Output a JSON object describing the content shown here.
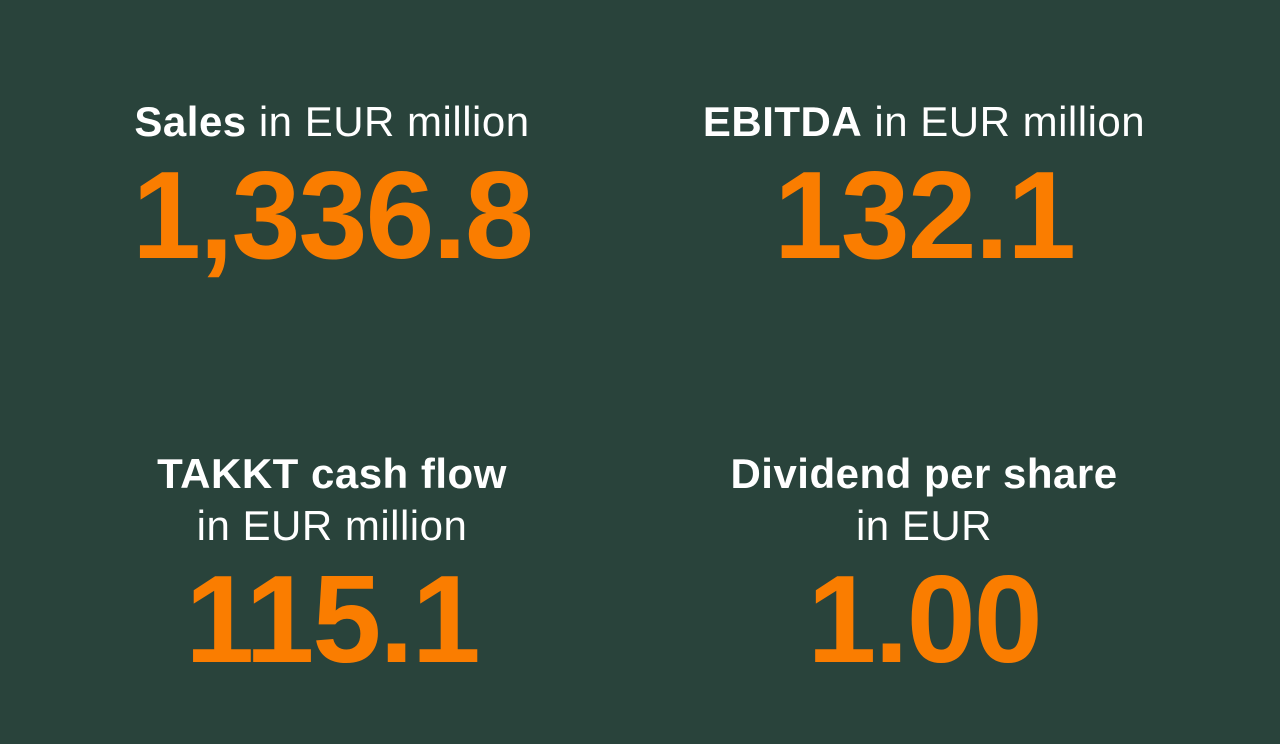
{
  "colors": {
    "background": "#29433b",
    "label": "#ffffff",
    "value": "#fa7d00"
  },
  "kpis": [
    {
      "label_bold": "Sales",
      "label_regular": "in EUR million",
      "value": "1,336.8"
    },
    {
      "label_bold": "EBITDA",
      "label_regular": "in EUR million",
      "value": "132.1"
    },
    {
      "label_bold": "TAKKT cash flow",
      "label_regular": "in EUR million",
      "value": "115.1"
    },
    {
      "label_bold": "Dividend per share",
      "label_regular": "in EUR",
      "value": "1.00"
    }
  ]
}
